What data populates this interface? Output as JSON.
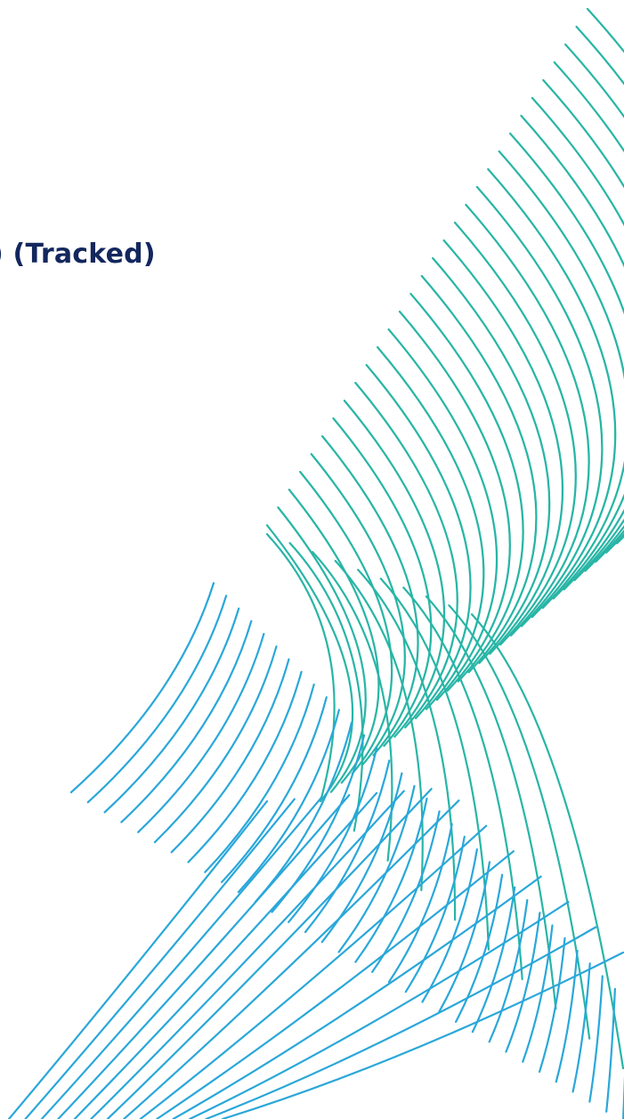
{
  "document": {
    "title_fragment": ") (Tracked)"
  },
  "decoration": {
    "name": "line-wave-pattern",
    "colors": {
      "teal": "#28b5a6",
      "blue": "#2aa7d9",
      "title": "#13275e"
    }
  }
}
